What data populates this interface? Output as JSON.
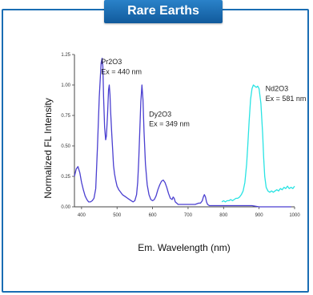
{
  "banner": {
    "title": "Rare Earths"
  },
  "colors": {
    "frame": "#1a6db3",
    "banner": "#1f6fb5",
    "series_main": "#4a3fd0",
    "series_nd": "#29e3e3"
  },
  "chart_data": {
    "type": "line",
    "title": "",
    "xlabel": "Em. Wavelength (nm)",
    "ylabel": "Normalized FL Intensity",
    "xlim": [
      380,
      1000
    ],
    "ylim": [
      0,
      1.25
    ],
    "xticks": [
      400,
      500,
      600,
      700,
      800,
      900,
      1000
    ],
    "yticks": [
      0.0,
      0.25,
      0.5,
      0.75,
      1.0,
      1.25
    ],
    "ytick_labels": [
      "0.00",
      "0.25",
      "0.50",
      "0.75",
      "1.00",
      "1.25"
    ],
    "grid": false,
    "annotations": [
      {
        "text": "Pr2O3",
        "x": 455,
        "y": 1.17
      },
      {
        "text": "Ex = 440 nm",
        "x": 455,
        "y": 1.09
      },
      {
        "text": "Dy2O3",
        "x": 590,
        "y": 0.74
      },
      {
        "text": "Ex = 349 nm",
        "x": 590,
        "y": 0.66
      },
      {
        "text": "Nd2O3",
        "x": 918,
        "y": 0.95
      },
      {
        "text": "Ex = 581 nm",
        "x": 918,
        "y": 0.87
      }
    ],
    "series": [
      {
        "color": "#4a3fd0",
        "x": [
          380,
          385,
          390,
          395,
          400,
          405,
          410,
          415,
          420,
          425,
          430,
          435,
          440,
          445,
          450,
          455,
          458,
          460,
          462,
          465,
          468,
          470,
          473,
          476,
          478,
          480,
          482,
          485,
          488,
          490,
          493,
          496,
          500,
          505,
          510,
          515,
          520,
          525,
          530,
          540,
          545,
          550,
          555,
          558,
          561,
          564,
          567,
          570,
          573,
          576,
          580,
          585,
          590,
          595,
          600,
          605,
          610,
          615,
          620,
          625,
          630,
          635,
          640,
          645,
          650,
          655,
          658,
          661,
          664,
          668,
          672,
          680,
          690,
          700,
          710,
          720,
          730,
          735,
          740,
          743,
          746,
          749,
          752,
          755,
          760,
          770,
          780,
          790,
          800,
          820,
          850,
          880,
          900,
          930,
          960,
          990
        ],
        "y": [
          0.25,
          0.31,
          0.33,
          0.28,
          0.2,
          0.14,
          0.09,
          0.06,
          0.04,
          0.04,
          0.05,
          0.07,
          0.15,
          0.5,
          0.9,
          1.18,
          1.22,
          1.15,
          0.9,
          0.65,
          0.55,
          0.58,
          0.75,
          0.96,
          1.0,
          0.92,
          0.78,
          0.6,
          0.45,
          0.34,
          0.27,
          0.22,
          0.17,
          0.14,
          0.12,
          0.1,
          0.09,
          0.08,
          0.07,
          0.05,
          0.04,
          0.05,
          0.1,
          0.2,
          0.38,
          0.62,
          0.86,
          1.0,
          0.88,
          0.62,
          0.35,
          0.18,
          0.1,
          0.06,
          0.05,
          0.06,
          0.09,
          0.14,
          0.18,
          0.21,
          0.22,
          0.2,
          0.16,
          0.11,
          0.07,
          0.06,
          0.08,
          0.07,
          0.04,
          0.03,
          0.02,
          0.02,
          0.02,
          0.02,
          0.02,
          0.02,
          0.03,
          0.03,
          0.05,
          0.08,
          0.1,
          0.08,
          0.04,
          0.02,
          0.01,
          0.01,
          0.01,
          0.01,
          0.01,
          0.01,
          0.01,
          0.01,
          0.0,
          0.0,
          0.0,
          0.0
        ]
      },
      {
        "color": "#29e3e3",
        "x": [
          795,
          800,
          805,
          810,
          815,
          820,
          825,
          830,
          835,
          840,
          845,
          850,
          855,
          860,
          865,
          868,
          872,
          876,
          880,
          884,
          888,
          892,
          896,
          900,
          905,
          910,
          913,
          916,
          920,
          925,
          930,
          935,
          940,
          945,
          950,
          955,
          960,
          965,
          970,
          975,
          980,
          985,
          990,
          995,
          1000
        ],
        "y": [
          0.04,
          0.05,
          0.04,
          0.05,
          0.05,
          0.06,
          0.05,
          0.06,
          0.07,
          0.07,
          0.08,
          0.1,
          0.13,
          0.2,
          0.35,
          0.5,
          0.7,
          0.88,
          0.97,
          1.0,
          0.99,
          0.98,
          0.99,
          0.97,
          0.85,
          0.6,
          0.4,
          0.25,
          0.16,
          0.13,
          0.12,
          0.13,
          0.12,
          0.13,
          0.14,
          0.13,
          0.15,
          0.14,
          0.16,
          0.15,
          0.17,
          0.15,
          0.16,
          0.15,
          0.17
        ]
      }
    ]
  }
}
